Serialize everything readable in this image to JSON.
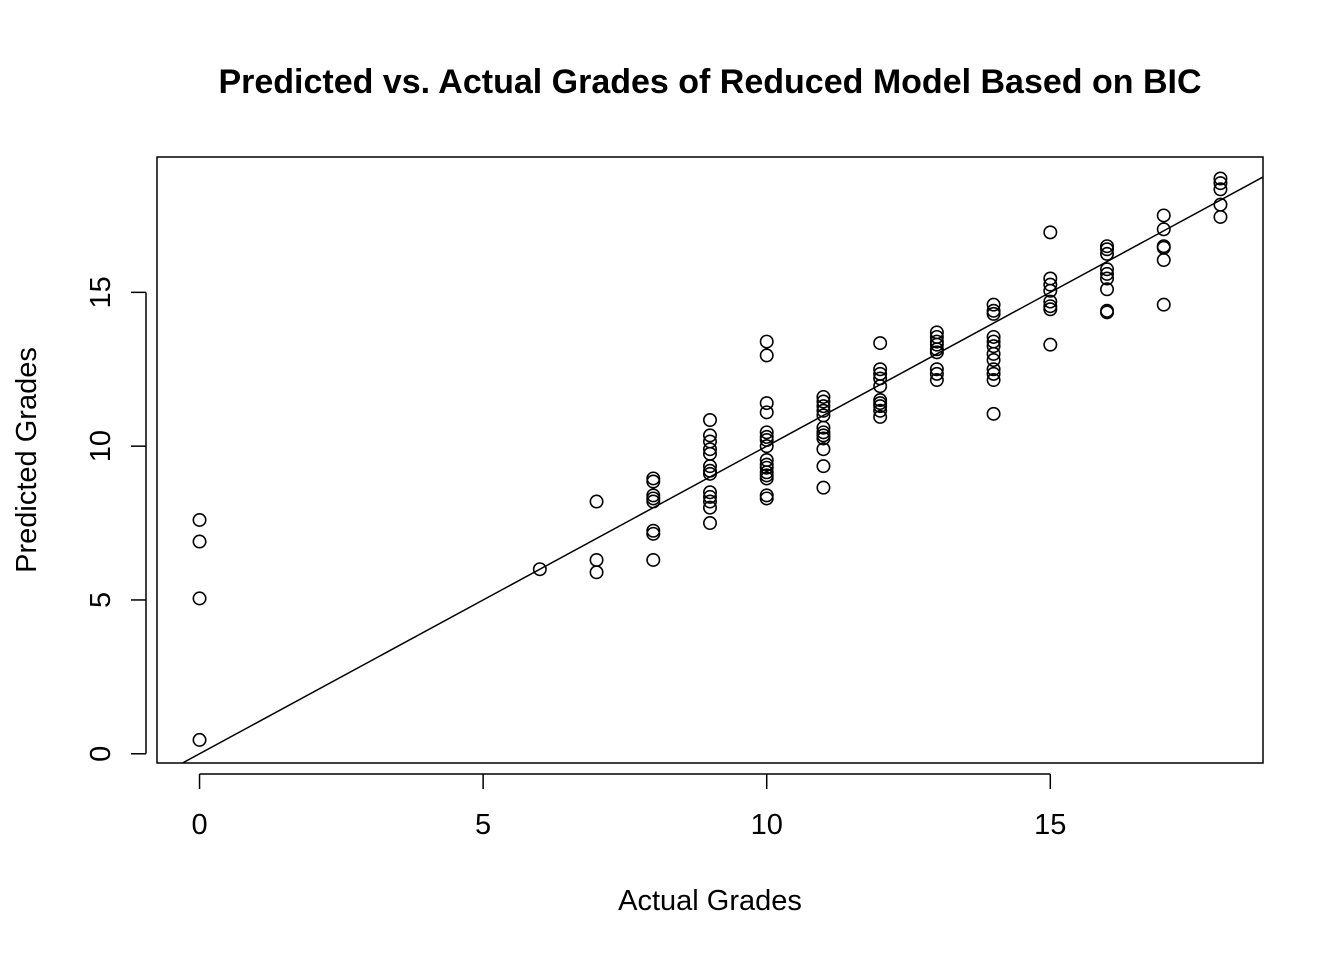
{
  "chart_data": {
    "type": "scatter",
    "title": "Predicted vs. Actual Grades of Reduced Model Based on BIC",
    "xlabel": "Actual Grades",
    "ylabel": "Predicted Grades",
    "xlim": [
      -0.75,
      18.75
    ],
    "ylim": [
      -0.3,
      19.4
    ],
    "x_ticks": [
      0,
      5,
      10,
      15
    ],
    "y_ticks": [
      0,
      5,
      10,
      15
    ],
    "x_tick_labels": [
      "0",
      "5",
      "10",
      "15"
    ],
    "y_tick_labels": [
      "0",
      "5",
      "10",
      "15"
    ],
    "grid": false,
    "legend": "none",
    "reference_line": {
      "intercept": 0,
      "slope": 1
    },
    "series": [
      {
        "marker": "open-circle",
        "color": "#000000",
        "points": [
          [
            0,
            7.6
          ],
          [
            0,
            6.9
          ],
          [
            0,
            5.05
          ],
          [
            0,
            0.45
          ],
          [
            6,
            6.0
          ],
          [
            7,
            8.2
          ],
          [
            7,
            6.3
          ],
          [
            7,
            5.9
          ],
          [
            8,
            8.95
          ],
          [
            8,
            8.85
          ],
          [
            8,
            8.4
          ],
          [
            8,
            8.3
          ],
          [
            8,
            8.2
          ],
          [
            8,
            7.25
          ],
          [
            8,
            7.15
          ],
          [
            8,
            6.3
          ],
          [
            9,
            10.85
          ],
          [
            9,
            10.35
          ],
          [
            9,
            10.15
          ],
          [
            9,
            9.9
          ],
          [
            9,
            9.75
          ],
          [
            9,
            9.35
          ],
          [
            9,
            9.2
          ],
          [
            9,
            9.1
          ],
          [
            9,
            8.5
          ],
          [
            9,
            8.35
          ],
          [
            9,
            8.2
          ],
          [
            9,
            8.0
          ],
          [
            9,
            7.5
          ],
          [
            10,
            13.4
          ],
          [
            10,
            12.95
          ],
          [
            10,
            11.4
          ],
          [
            10,
            11.1
          ],
          [
            10,
            10.45
          ],
          [
            10,
            10.3
          ],
          [
            10,
            10.2
          ],
          [
            10,
            10.0
          ],
          [
            10,
            9.55
          ],
          [
            10,
            9.4
          ],
          [
            10,
            9.3
          ],
          [
            10,
            9.15
          ],
          [
            10,
            9.05
          ],
          [
            10,
            8.95
          ],
          [
            10,
            8.4
          ],
          [
            10,
            8.3
          ],
          [
            11,
            11.6
          ],
          [
            11,
            11.45
          ],
          [
            11,
            11.3
          ],
          [
            11,
            11.15
          ],
          [
            11,
            11.0
          ],
          [
            11,
            10.6
          ],
          [
            11,
            10.45
          ],
          [
            11,
            10.35
          ],
          [
            11,
            10.25
          ],
          [
            11,
            9.9
          ],
          [
            11,
            9.35
          ],
          [
            11,
            8.65
          ],
          [
            12,
            13.35
          ],
          [
            12,
            12.5
          ],
          [
            12,
            12.35
          ],
          [
            12,
            12.2
          ],
          [
            12,
            11.95
          ],
          [
            12,
            11.5
          ],
          [
            12,
            11.4
          ],
          [
            12,
            11.3
          ],
          [
            12,
            11.15
          ],
          [
            12,
            10.95
          ],
          [
            13,
            13.7
          ],
          [
            13,
            13.55
          ],
          [
            13,
            13.4
          ],
          [
            13,
            13.3
          ],
          [
            13,
            13.15
          ],
          [
            13,
            13.05
          ],
          [
            13,
            12.5
          ],
          [
            13,
            12.35
          ],
          [
            13,
            12.15
          ],
          [
            14,
            14.6
          ],
          [
            14,
            14.4
          ],
          [
            14,
            14.3
          ],
          [
            14,
            13.55
          ],
          [
            14,
            13.4
          ],
          [
            14,
            13.25
          ],
          [
            14,
            13.0
          ],
          [
            14,
            12.8
          ],
          [
            14,
            12.5
          ],
          [
            14,
            12.35
          ],
          [
            14,
            12.15
          ],
          [
            14,
            11.05
          ],
          [
            15,
            16.95
          ],
          [
            15,
            15.45
          ],
          [
            15,
            15.25
          ],
          [
            15,
            15.05
          ],
          [
            15,
            14.7
          ],
          [
            15,
            14.55
          ],
          [
            15,
            14.45
          ],
          [
            15,
            13.3
          ],
          [
            16,
            16.5
          ],
          [
            16,
            16.4
          ],
          [
            16,
            16.25
          ],
          [
            16,
            15.75
          ],
          [
            16,
            15.6
          ],
          [
            16,
            15.45
          ],
          [
            16,
            15.1
          ],
          [
            16,
            14.4
          ],
          [
            16,
            14.35
          ],
          [
            17,
            17.5
          ],
          [
            17,
            17.05
          ],
          [
            17,
            16.5
          ],
          [
            17,
            16.45
          ],
          [
            17,
            16.05
          ],
          [
            17,
            14.6
          ],
          [
            18,
            18.7
          ],
          [
            18,
            18.55
          ],
          [
            18,
            18.35
          ],
          [
            18,
            17.85
          ],
          [
            18,
            17.45
          ]
        ]
      }
    ]
  }
}
